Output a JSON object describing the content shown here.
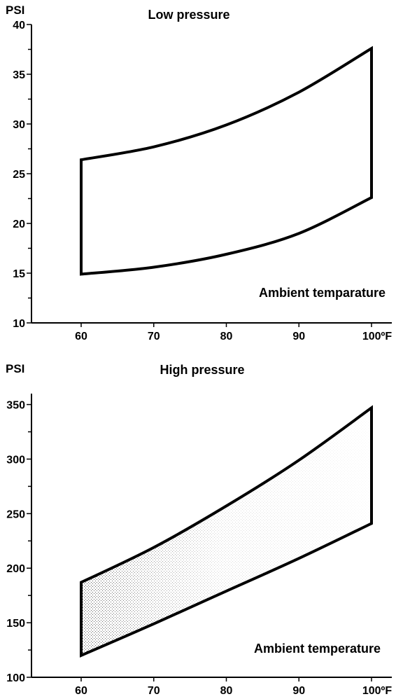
{
  "chart_data": [
    {
      "type": "area",
      "title": "Low pressure",
      "ylabel": "PSI",
      "xlabel": "Ambient temparature",
      "xlim": [
        55,
        100
      ],
      "ylim": [
        10,
        40
      ],
      "x_ticks": [
        "60",
        "70",
        "80",
        "90",
        "100ºF"
      ],
      "x_tick_values": [
        60,
        70,
        80,
        90,
        100
      ],
      "y_ticks": [
        "10",
        "15",
        "20",
        "25",
        "30",
        "35",
        "40"
      ],
      "y_tick_values": [
        10,
        15,
        20,
        25,
        30,
        35,
        40
      ],
      "y_minor_ticks": [
        12.5,
        17.5,
        22.5,
        27.5,
        32.5,
        37.5
      ],
      "shaded": false,
      "series": [
        {
          "x": [
            60,
            70,
            80,
            90,
            100
          ],
          "values": [
            26.4,
            27.7,
            29.9,
            33.2,
            37.6
          ]
        },
        {
          "x": [
            60,
            70,
            80,
            90,
            100
          ],
          "values": [
            14.9,
            15.6,
            16.9,
            19.0,
            22.6
          ]
        }
      ]
    },
    {
      "type": "area",
      "title": "High pressure",
      "ylabel": "PSI",
      "xlabel": "Ambient temperature",
      "xlim": [
        55,
        100
      ],
      "ylim": [
        100,
        360
      ],
      "x_ticks": [
        "60",
        "70",
        "80",
        "90",
        "100ºF"
      ],
      "x_tick_values": [
        60,
        70,
        80,
        90,
        100
      ],
      "y_ticks": [
        "100",
        "150",
        "200",
        "250",
        "300",
        "350"
      ],
      "y_tick_values": [
        100,
        150,
        200,
        250,
        300,
        350
      ],
      "y_minor_ticks": [
        125,
        175,
        225,
        275,
        325
      ],
      "shaded": true,
      "series": [
        {
          "x": [
            60,
            70,
            80,
            90,
            100
          ],
          "values": [
            187,
            219,
            257,
            299,
            347
          ]
        },
        {
          "x": [
            60,
            70,
            80,
            90,
            100
          ],
          "values": [
            120,
            149,
            179,
            209,
            241
          ]
        }
      ]
    }
  ]
}
